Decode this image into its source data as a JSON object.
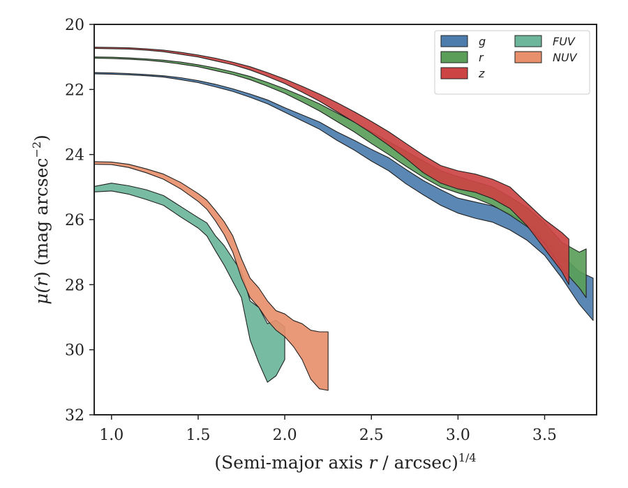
{
  "chart_data": {
    "type": "area",
    "xlabel_main": "(Semi-major axis ",
    "xlabel_var": "r",
    "xlabel_tail": " / arcsec)",
    "xlabel_sup": "1/4",
    "ylabel_main": "μ(",
    "ylabel_var": "r",
    "ylabel_tail": ") (mag arcsec",
    "ylabel_sup": "−2",
    "ylabel_close": ")",
    "xlim": [
      0.9,
      3.8
    ],
    "ylim": [
      32,
      20
    ],
    "xticks": [
      {
        "value": 1.0,
        "label": "1.0"
      },
      {
        "value": 1.5,
        "label": "1.5"
      },
      {
        "value": 2.0,
        "label": "2.0"
      },
      {
        "value": 2.5,
        "label": "2.5"
      },
      {
        "value": 3.0,
        "label": "3.0"
      },
      {
        "value": 3.5,
        "label": "3.5"
      }
    ],
    "yticks": [
      {
        "value": 20,
        "label": "20"
      },
      {
        "value": 22,
        "label": "22"
      },
      {
        "value": 24,
        "label": "24"
      },
      {
        "value": 26,
        "label": "26"
      },
      {
        "value": 28,
        "label": "28"
      },
      {
        "value": 30,
        "label": "30"
      },
      {
        "value": 32,
        "label": "32"
      }
    ],
    "grid": false,
    "legend_position": "top-right",
    "series": [
      {
        "name": "g",
        "color": "#4c7dac",
        "points": [
          [
            0.9,
            21.48,
            21.52
          ],
          [
            1.0,
            21.49,
            21.53
          ],
          [
            1.1,
            21.51,
            21.55
          ],
          [
            1.2,
            21.54,
            21.58
          ],
          [
            1.3,
            21.58,
            21.62
          ],
          [
            1.4,
            21.64,
            21.7
          ],
          [
            1.5,
            21.73,
            21.79
          ],
          [
            1.6,
            21.84,
            21.92
          ],
          [
            1.7,
            21.98,
            22.06
          ],
          [
            1.8,
            22.14,
            22.24
          ],
          [
            1.9,
            22.32,
            22.44
          ],
          [
            2.0,
            22.56,
            22.7
          ],
          [
            2.1,
            22.78,
            22.96
          ],
          [
            2.2,
            23.0,
            23.22
          ],
          [
            2.3,
            23.3,
            23.56
          ],
          [
            2.4,
            23.56,
            23.86
          ],
          [
            2.5,
            23.84,
            24.2
          ],
          [
            2.6,
            24.1,
            24.5
          ],
          [
            2.7,
            24.46,
            24.9
          ],
          [
            2.8,
            24.8,
            25.24
          ],
          [
            2.9,
            25.08,
            25.56
          ],
          [
            3.0,
            25.34,
            25.8
          ],
          [
            3.1,
            25.46,
            25.96
          ],
          [
            3.2,
            25.58,
            26.08
          ],
          [
            3.3,
            25.82,
            26.32
          ],
          [
            3.4,
            26.08,
            26.64
          ],
          [
            3.5,
            26.5,
            27.1
          ],
          [
            3.6,
            27.1,
            27.8
          ],
          [
            3.7,
            27.6,
            28.6
          ],
          [
            3.78,
            27.8,
            29.1
          ]
        ]
      },
      {
        "name": "r",
        "color": "#5a9e5a",
        "points": [
          [
            0.9,
            21.0,
            21.04
          ],
          [
            1.0,
            21.01,
            21.05
          ],
          [
            1.1,
            21.03,
            21.07
          ],
          [
            1.2,
            21.06,
            21.1
          ],
          [
            1.3,
            21.1,
            21.15
          ],
          [
            1.4,
            21.16,
            21.22
          ],
          [
            1.5,
            21.24,
            21.3
          ],
          [
            1.6,
            21.34,
            21.42
          ],
          [
            1.7,
            21.46,
            21.54
          ],
          [
            1.8,
            21.6,
            21.7
          ],
          [
            1.9,
            21.78,
            21.9
          ],
          [
            2.0,
            21.98,
            22.12
          ],
          [
            2.1,
            22.2,
            22.38
          ],
          [
            2.2,
            22.44,
            22.66
          ],
          [
            2.3,
            22.72,
            22.98
          ],
          [
            2.4,
            23.0,
            23.3
          ],
          [
            2.5,
            23.3,
            23.66
          ],
          [
            2.6,
            23.6,
            24.0
          ],
          [
            2.7,
            23.9,
            24.36
          ],
          [
            2.8,
            24.2,
            24.7
          ],
          [
            2.9,
            24.5,
            25.0
          ],
          [
            3.0,
            24.68,
            25.18
          ],
          [
            3.1,
            24.84,
            25.34
          ],
          [
            3.2,
            25.0,
            25.56
          ],
          [
            3.3,
            25.3,
            25.86
          ],
          [
            3.4,
            25.64,
            26.22
          ],
          [
            3.5,
            26.1,
            26.72
          ],
          [
            3.6,
            26.7,
            27.5
          ],
          [
            3.7,
            27.0,
            28.1
          ],
          [
            3.74,
            26.9,
            28.4
          ]
        ]
      },
      {
        "name": "z",
        "color": "#cc4444",
        "points": [
          [
            0.9,
            20.7,
            20.74
          ],
          [
            1.0,
            20.71,
            20.75
          ],
          [
            1.1,
            20.72,
            20.76
          ],
          [
            1.2,
            20.75,
            20.79
          ],
          [
            1.3,
            20.79,
            20.84
          ],
          [
            1.4,
            20.86,
            20.92
          ],
          [
            1.5,
            20.94,
            21.0
          ],
          [
            1.6,
            21.04,
            21.12
          ],
          [
            1.7,
            21.16,
            21.24
          ],
          [
            1.8,
            21.3,
            21.4
          ],
          [
            1.9,
            21.48,
            21.6
          ],
          [
            2.0,
            21.68,
            21.82
          ],
          [
            2.1,
            21.9,
            22.08
          ],
          [
            2.2,
            22.14,
            22.36
          ],
          [
            2.3,
            22.4,
            22.68
          ],
          [
            2.4,
            22.68,
            23.0
          ],
          [
            2.5,
            22.98,
            23.34
          ],
          [
            2.6,
            23.3,
            23.72
          ],
          [
            2.7,
            23.66,
            24.12
          ],
          [
            2.8,
            24.02,
            24.56
          ],
          [
            2.9,
            24.34,
            24.88
          ],
          [
            3.0,
            24.5,
            25.06
          ],
          [
            3.1,
            24.6,
            25.16
          ],
          [
            3.2,
            24.76,
            25.36
          ],
          [
            3.3,
            25.0,
            25.66
          ],
          [
            3.4,
            25.5,
            26.2
          ],
          [
            3.5,
            26.0,
            26.9
          ],
          [
            3.6,
            26.4,
            27.6
          ],
          [
            3.64,
            26.6,
            28.0
          ]
        ]
      },
      {
        "name": "FUV",
        "color": "#6db59b",
        "points": [
          [
            0.9,
            24.98,
            25.15
          ],
          [
            1.0,
            24.88,
            25.12
          ],
          [
            1.1,
            24.96,
            25.22
          ],
          [
            1.2,
            25.08,
            25.38
          ],
          [
            1.3,
            25.26,
            25.56
          ],
          [
            1.4,
            25.6,
            25.92
          ],
          [
            1.5,
            25.94,
            26.26
          ],
          [
            1.55,
            26.1,
            26.5
          ],
          [
            1.6,
            26.5,
            26.96
          ],
          [
            1.65,
            26.8,
            27.4
          ],
          [
            1.7,
            27.2,
            27.9
          ],
          [
            1.75,
            27.6,
            28.4
          ],
          [
            1.8,
            28.5,
            29.7
          ],
          [
            1.85,
            28.7,
            30.4
          ],
          [
            1.9,
            29.2,
            31.0
          ],
          [
            1.95,
            29.1,
            30.8
          ],
          [
            2.0,
            29.3,
            30.3
          ]
        ]
      },
      {
        "name": "NUV",
        "color": "#e8906c",
        "points": [
          [
            0.9,
            24.22,
            24.3
          ],
          [
            1.0,
            24.23,
            24.31
          ],
          [
            1.1,
            24.3,
            24.4
          ],
          [
            1.2,
            24.44,
            24.56
          ],
          [
            1.3,
            24.6,
            24.76
          ],
          [
            1.4,
            24.86,
            25.06
          ],
          [
            1.5,
            25.2,
            25.44
          ],
          [
            1.55,
            25.4,
            25.68
          ],
          [
            1.6,
            25.72,
            26.04
          ],
          [
            1.65,
            26.06,
            26.46
          ],
          [
            1.7,
            26.5,
            27.0
          ],
          [
            1.75,
            27.2,
            27.8
          ],
          [
            1.8,
            27.8,
            28.4
          ],
          [
            1.85,
            28.1,
            28.7
          ],
          [
            1.9,
            28.5,
            29.1
          ],
          [
            1.95,
            28.8,
            29.4
          ],
          [
            2.0,
            28.9,
            29.6
          ],
          [
            2.05,
            29.1,
            29.9
          ],
          [
            2.1,
            29.2,
            30.3
          ],
          [
            2.15,
            29.4,
            30.9
          ],
          [
            2.2,
            29.45,
            31.2
          ],
          [
            2.25,
            29.45,
            31.25
          ]
        ]
      }
    ]
  }
}
